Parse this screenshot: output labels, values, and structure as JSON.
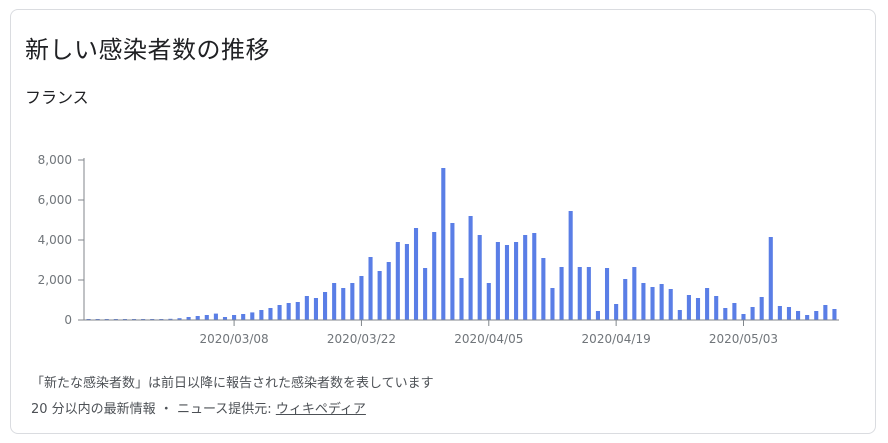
{
  "title": "新しい感染者数の推移",
  "region": "フランス",
  "footnote": "「新たな感染者数」は前日以降に報告された感染者数を表しています",
  "source": {
    "prefix": "20 分以内の最新情報 ・ ニュース提供元: ",
    "link_text": "ウィキペディア"
  },
  "colors": {
    "bar": "#5a7ee6",
    "axis": "#80868b",
    "text": "#70757a"
  },
  "chart_data": {
    "type": "bar",
    "ylim": [
      0,
      8000
    ],
    "y_ticks": [
      0,
      2000,
      4000,
      6000,
      8000
    ],
    "y_tick_labels": [
      "0",
      "2,000",
      "4,000",
      "6,000",
      "8,000"
    ],
    "x_tick_labels": [
      "2020/03/08",
      "2020/03/22",
      "2020/04/05",
      "2020/04/19",
      "2020/05/03"
    ],
    "x_tick_index": [
      16,
      30,
      44,
      58,
      72
    ],
    "values": [
      10,
      10,
      10,
      15,
      20,
      20,
      25,
      30,
      40,
      60,
      90,
      150,
      200,
      250,
      320,
      150,
      250,
      300,
      380,
      500,
      600,
      750,
      850,
      900,
      1200,
      1100,
      1400,
      1850,
      1600,
      1850,
      2200,
      3150,
      2450,
      2900,
      3900,
      3800,
      4600,
      2600,
      4400,
      7600,
      4850,
      2100,
      5200,
      4250,
      1850,
      3900,
      3750,
      3900,
      4250,
      4350,
      3100,
      1600,
      2650,
      5450,
      2650,
      2650,
      450,
      2600,
      800,
      2050,
      2650,
      1850,
      1650,
      1800,
      1550,
      500,
      1250,
      1100,
      1600,
      1200,
      600,
      850,
      300,
      650,
      1150,
      4150,
      700,
      650,
      450,
      250,
      450,
      750,
      550
    ]
  }
}
